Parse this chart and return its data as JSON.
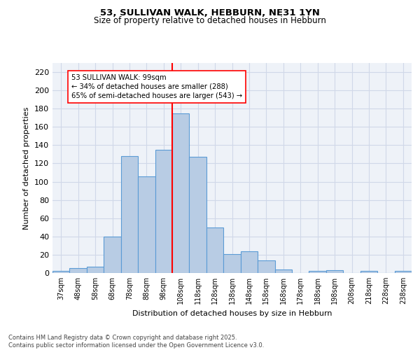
{
  "title1": "53, SULLIVAN WALK, HEBBURN, NE31 1YN",
  "title2": "Size of property relative to detached houses in Hebburn",
  "xlabel": "Distribution of detached houses by size in Hebburn",
  "ylabel": "Number of detached properties",
  "footnote": "Contains HM Land Registry data © Crown copyright and database right 2025.\nContains public sector information licensed under the Open Government Licence v3.0.",
  "bin_labels": [
    "37sqm",
    "48sqm",
    "58sqm",
    "68sqm",
    "78sqm",
    "88sqm",
    "98sqm",
    "108sqm",
    "118sqm",
    "128sqm",
    "138sqm",
    "148sqm",
    "158sqm",
    "168sqm",
    "178sqm",
    "188sqm",
    "198sqm",
    "208sqm",
    "218sqm",
    "228sqm",
    "238sqm"
  ],
  "bar_values": [
    2,
    5,
    7,
    40,
    128,
    106,
    135,
    175,
    127,
    50,
    21,
    24,
    14,
    4,
    0,
    2,
    3,
    0,
    2,
    0,
    2
  ],
  "bar_color": "#b8cce4",
  "bar_edge_color": "#5b9bd5",
  "grid_color": "#d0d8e8",
  "bg_color": "#eef2f8",
  "red_line_x": 6.5,
  "annotation_title": "53 SULLIVAN WALK: 99sqm",
  "annotation_line1": "← 34% of detached houses are smaller (288)",
  "annotation_line2": "65% of semi-detached houses are larger (543) →",
  "ylim": [
    0,
    230
  ],
  "yticks": [
    0,
    20,
    40,
    60,
    80,
    100,
    120,
    140,
    160,
    180,
    200,
    220
  ]
}
